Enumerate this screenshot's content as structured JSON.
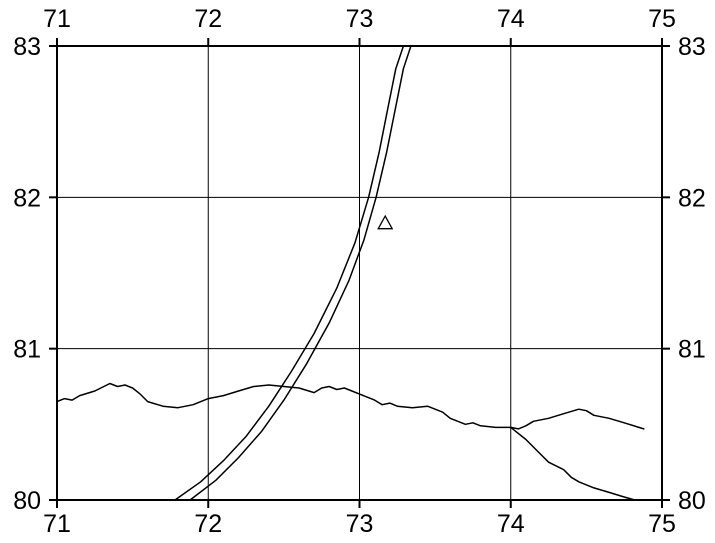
{
  "map": {
    "x_range": [
      71,
      75
    ],
    "y_range": [
      80,
      83
    ],
    "x_ticks": [
      "71",
      "72",
      "73",
      "74",
      "75"
    ],
    "y_ticks": [
      "80",
      "81",
      "82",
      "83"
    ],
    "grid": true,
    "line_color": "#000000",
    "background": "#ffffff",
    "features": [
      {
        "name": "track-line-left",
        "points": [
          [
            71.78,
            80.0
          ],
          [
            71.95,
            80.12
          ],
          [
            72.1,
            80.26
          ],
          [
            72.25,
            80.42
          ],
          [
            72.4,
            80.62
          ],
          [
            72.55,
            80.85
          ],
          [
            72.7,
            81.1
          ],
          [
            72.85,
            81.4
          ],
          [
            72.97,
            81.7
          ],
          [
            73.06,
            82.0
          ],
          [
            73.13,
            82.3
          ],
          [
            73.19,
            82.6
          ],
          [
            73.24,
            82.85
          ],
          [
            73.29,
            83.0
          ]
        ]
      },
      {
        "name": "track-line-right",
        "points": [
          [
            71.88,
            80.0
          ],
          [
            72.05,
            80.13
          ],
          [
            72.2,
            80.28
          ],
          [
            72.35,
            80.45
          ],
          [
            72.5,
            80.66
          ],
          [
            72.65,
            80.9
          ],
          [
            72.8,
            81.17
          ],
          [
            72.93,
            81.45
          ],
          [
            73.03,
            81.72
          ],
          [
            73.11,
            82.0
          ],
          [
            73.18,
            82.3
          ],
          [
            73.24,
            82.6
          ],
          [
            73.29,
            82.85
          ],
          [
            73.34,
            83.0
          ]
        ]
      },
      {
        "name": "coastline-contour",
        "points": [
          [
            71.0,
            80.65
          ],
          [
            71.05,
            80.67
          ],
          [
            71.1,
            80.66
          ],
          [
            71.15,
            80.69
          ],
          [
            71.25,
            80.72
          ],
          [
            71.35,
            80.77
          ],
          [
            71.4,
            80.75
          ],
          [
            71.45,
            80.76
          ],
          [
            71.5,
            80.74
          ],
          [
            71.55,
            80.7
          ],
          [
            71.6,
            80.65
          ],
          [
            71.7,
            80.62
          ],
          [
            71.8,
            80.61
          ],
          [
            71.9,
            80.63
          ],
          [
            72.0,
            80.67
          ],
          [
            72.1,
            80.69
          ],
          [
            72.2,
            80.72
          ],
          [
            72.3,
            80.75
          ],
          [
            72.4,
            80.76
          ],
          [
            72.5,
            80.75
          ],
          [
            72.6,
            80.74
          ],
          [
            72.7,
            80.71
          ],
          [
            72.75,
            80.74
          ],
          [
            72.8,
            80.75
          ],
          [
            72.85,
            80.73
          ],
          [
            72.9,
            80.74
          ],
          [
            72.95,
            80.72
          ],
          [
            73.0,
            80.7
          ],
          [
            73.05,
            80.68
          ],
          [
            73.1,
            80.66
          ],
          [
            73.15,
            80.63
          ],
          [
            73.2,
            80.64
          ],
          [
            73.25,
            80.62
          ],
          [
            73.35,
            80.61
          ],
          [
            73.45,
            80.62
          ],
          [
            73.55,
            80.58
          ],
          [
            73.6,
            80.54
          ],
          [
            73.65,
            80.52
          ],
          [
            73.7,
            80.5
          ],
          [
            73.75,
            80.51
          ],
          [
            73.8,
            80.49
          ],
          [
            73.9,
            80.48
          ],
          [
            74.0,
            80.48
          ],
          [
            74.05,
            80.47
          ],
          [
            74.1,
            80.49
          ],
          [
            74.15,
            80.52
          ],
          [
            74.25,
            80.54
          ],
          [
            74.35,
            80.57
          ],
          [
            74.45,
            80.6
          ],
          [
            74.5,
            80.59
          ],
          [
            74.55,
            80.56
          ],
          [
            74.65,
            80.54
          ],
          [
            74.75,
            80.51
          ],
          [
            74.88,
            80.47
          ]
        ]
      },
      {
        "name": "coastline-branch",
        "points": [
          [
            74.0,
            80.48
          ],
          [
            74.1,
            80.4
          ],
          [
            74.2,
            80.3
          ],
          [
            74.25,
            80.25
          ],
          [
            74.35,
            80.2
          ],
          [
            74.4,
            80.15
          ],
          [
            74.45,
            80.12
          ],
          [
            74.55,
            80.08
          ],
          [
            74.65,
            80.05
          ],
          [
            74.75,
            80.02
          ],
          [
            74.82,
            80.0
          ]
        ]
      }
    ],
    "markers": [
      {
        "name": "station-triangle",
        "shape": "triangle",
        "x": 73.17,
        "y": 81.83
      }
    ]
  }
}
